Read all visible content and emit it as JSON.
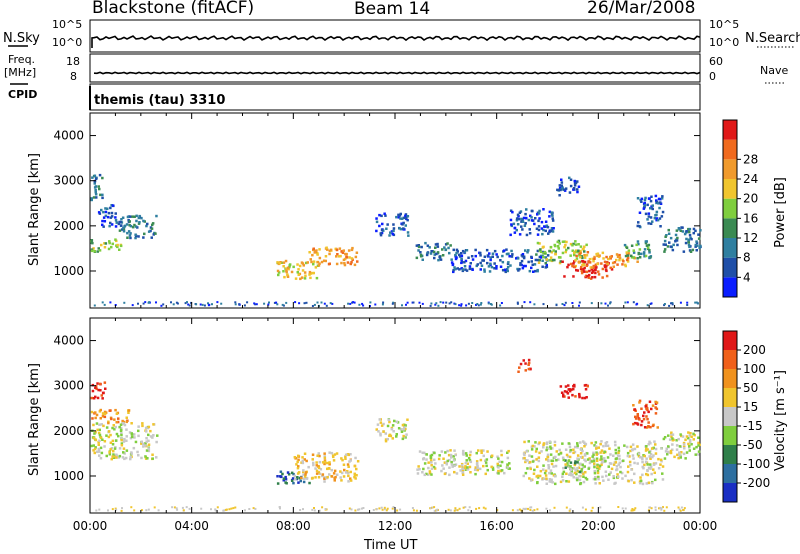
{
  "header": {
    "title": "Blackstone (fitACF)",
    "beam": "Beam 14",
    "date": "26/Mar/2008"
  },
  "params": {
    "nsky_label": "N.Sky",
    "nsky_ticks": [
      "10^5",
      "10^0"
    ],
    "nsearch_label": "N.Search",
    "nsearch_ticks": [
      "10^5",
      "10^0"
    ],
    "freq_label": "Freq.",
    "freq_unit": "[MHz]",
    "freq_ticks": [
      "18",
      "8"
    ],
    "nave_label": "Nave",
    "nave_ticks": [
      "60",
      "0"
    ],
    "cpid_label": "CPID",
    "cpid_value": "themis (tau) 3310"
  },
  "chart_data": [
    {
      "type": "heatmap",
      "panel": "power",
      "ylabel": "Slant Range [km]",
      "xlabel": "",
      "xlim": [
        "00:00",
        "24:00"
      ],
      "ylim": [
        180,
        4500
      ],
      "yticks": [
        "1000",
        "2000",
        "3000",
        "4000"
      ],
      "colorbar_label": "Power [dB]",
      "colorbar_ticks": [
        "4",
        "8",
        "12",
        "16",
        "20",
        "24",
        "28"
      ],
      "colorbar_colors": [
        "#0a1eff",
        "#1f4fa8",
        "#2f7fa0",
        "#3a8a52",
        "#7fce3e",
        "#f0c52e",
        "#f09a2c",
        "#f06a1e",
        "#e01818"
      ],
      "blobs": [
        {
          "t0": 0.0,
          "t1": 0.5,
          "r0": 2600,
          "r1": 3200,
          "level": 2
        },
        {
          "t0": 0.0,
          "t1": 1.2,
          "r0": 1450,
          "r1": 1750,
          "level": 4
        },
        {
          "t0": 1.0,
          "t1": 2.6,
          "r0": 1750,
          "r1": 2250,
          "level": 2
        },
        {
          "t0": 0.3,
          "t1": 1.0,
          "r0": 2000,
          "r1": 2500,
          "level": 1
        },
        {
          "t0": 7.3,
          "t1": 9.0,
          "r0": 850,
          "r1": 1250,
          "level": 5
        },
        {
          "t0": 8.5,
          "t1": 10.5,
          "r0": 1150,
          "r1": 1550,
          "level": 6
        },
        {
          "t0": 11.2,
          "t1": 12.5,
          "r0": 1800,
          "r1": 2300,
          "level": 1
        },
        {
          "t0": 12.8,
          "t1": 14.2,
          "r0": 1250,
          "r1": 1650,
          "level": 2
        },
        {
          "t0": 14.2,
          "t1": 18.0,
          "r0": 1000,
          "r1": 1500,
          "level": 1
        },
        {
          "t0": 16.5,
          "t1": 18.2,
          "r0": 1800,
          "r1": 2400,
          "level": 1
        },
        {
          "t0": 17.5,
          "t1": 19.5,
          "r0": 1200,
          "r1": 1700,
          "level": 4
        },
        {
          "t0": 18.5,
          "t1": 20.5,
          "r0": 850,
          "r1": 1250,
          "level": 8
        },
        {
          "t0": 19.0,
          "t1": 21.5,
          "r0": 1100,
          "r1": 1450,
          "level": 6
        },
        {
          "t0": 18.3,
          "t1": 19.2,
          "r0": 2700,
          "r1": 3100,
          "level": 1
        },
        {
          "t0": 21.0,
          "t1": 22.2,
          "r0": 1300,
          "r1": 1700,
          "level": 3
        },
        {
          "t0": 21.5,
          "t1": 22.5,
          "r0": 2000,
          "r1": 2700,
          "level": 1
        },
        {
          "t0": 22.5,
          "t1": 24.0,
          "r0": 1450,
          "r1": 2000,
          "level": 2
        }
      ]
    },
    {
      "type": "heatmap",
      "panel": "velocity",
      "ylabel": "Slant Range [km]",
      "xlabel": "Time UT",
      "xlim": [
        "00:00",
        "24:00"
      ],
      "ylim": [
        180,
        4500
      ],
      "xticks": [
        "00:00",
        "04:00",
        "08:00",
        "12:00",
        "16:00",
        "20:00",
        "00:00"
      ],
      "yticks": [
        "1000",
        "2000",
        "3000",
        "4000"
      ],
      "colorbar_label": "Velocity [m s⁻¹]",
      "colorbar_ticks": [
        "200",
        "100",
        "50",
        "15",
        "-15",
        "-50",
        "-100",
        "-200"
      ],
      "colorbar_colors": [
        "#1a2fc4",
        "#2d6fa0",
        "#2f7f4a",
        "#7fce3e",
        "#c8c8c8",
        "#f0c52e",
        "#f0921e",
        "#f0601a",
        "#e01818"
      ],
      "blobs": [
        {
          "t0": 0.0,
          "t1": 0.6,
          "r0": 2700,
          "r1": 3100,
          "level": 8
        },
        {
          "t0": 0.0,
          "t1": 1.5,
          "r0": 2200,
          "r1": 2500,
          "level": 6
        },
        {
          "t0": 0.0,
          "t1": 2.6,
          "r0": 1400,
          "r1": 2200,
          "level": 4
        },
        {
          "t0": 7.3,
          "t1": 8.6,
          "r0": 850,
          "r1": 1150,
          "level": 1
        },
        {
          "t0": 8.0,
          "t1": 10.5,
          "r0": 900,
          "r1": 1550,
          "level": 5
        },
        {
          "t0": 11.2,
          "t1": 12.5,
          "r0": 1800,
          "r1": 2300,
          "level": 4
        },
        {
          "t0": 12.8,
          "t1": 16.5,
          "r0": 1050,
          "r1": 1600,
          "level": 4
        },
        {
          "t0": 17.0,
          "t1": 22.5,
          "r0": 850,
          "r1": 1800,
          "level": 4
        },
        {
          "t0": 18.5,
          "t1": 19.3,
          "r0": 1050,
          "r1": 1450,
          "level": 3
        },
        {
          "t0": 18.3,
          "t1": 19.6,
          "r0": 2750,
          "r1": 3050,
          "level": 8
        },
        {
          "t0": 21.3,
          "t1": 22.3,
          "r0": 2100,
          "r1": 2700,
          "level": 7
        },
        {
          "t0": 22.5,
          "t1": 24.0,
          "r0": 1400,
          "r1": 2000,
          "level": 4
        },
        {
          "t0": 16.8,
          "t1": 17.3,
          "r0": 3300,
          "r1": 3600,
          "level": 8
        }
      ]
    }
  ]
}
